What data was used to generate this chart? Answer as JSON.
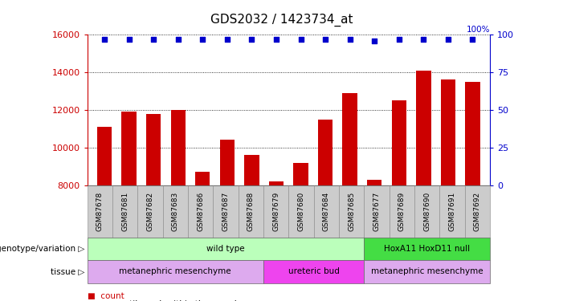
{
  "title": "GDS2032 / 1423734_at",
  "samples": [
    "GSM87678",
    "GSM87681",
    "GSM87682",
    "GSM87683",
    "GSM87686",
    "GSM87687",
    "GSM87688",
    "GSM87679",
    "GSM87680",
    "GSM87684",
    "GSM87685",
    "GSM87677",
    "GSM87689",
    "GSM87690",
    "GSM87691",
    "GSM87692"
  ],
  "counts": [
    11100,
    11900,
    11800,
    12000,
    8700,
    10400,
    9600,
    8200,
    9200,
    11500,
    12900,
    8300,
    12500,
    14100,
    13600,
    13500
  ],
  "percentile_ranks": [
    97,
    97,
    97,
    97,
    97,
    97,
    97,
    97,
    97,
    97,
    97,
    96,
    97,
    97,
    97,
    97
  ],
  "bar_color": "#cc0000",
  "dot_color": "#0000cc",
  "ylim_left": [
    8000,
    16000
  ],
  "ylim_right": [
    0,
    100
  ],
  "yticks_left": [
    8000,
    10000,
    12000,
    14000,
    16000
  ],
  "yticks_right": [
    0,
    25,
    50,
    75,
    100
  ],
  "genotype_labels": [
    {
      "text": "wild type",
      "start": 0,
      "end": 10,
      "color": "#bbffbb"
    },
    {
      "text": "HoxA11 HoxD11 null",
      "start": 11,
      "end": 15,
      "color": "#44dd44"
    }
  ],
  "tissue_labels": [
    {
      "text": "metanephric mesenchyme",
      "start": 0,
      "end": 6,
      "color": "#ddaaee"
    },
    {
      "text": "ureteric bud",
      "start": 7,
      "end": 10,
      "color": "#ee44ee"
    },
    {
      "text": "metanephric mesenchyme",
      "start": 11,
      "end": 15,
      "color": "#ddaaee"
    }
  ],
  "legend_count_color": "#cc0000",
  "legend_dot_color": "#0000cc",
  "tick_label_color_left": "#cc0000",
  "tick_label_color_right": "#0000cc",
  "xtick_bg_color": "#cccccc",
  "xtick_border_color": "#888888"
}
